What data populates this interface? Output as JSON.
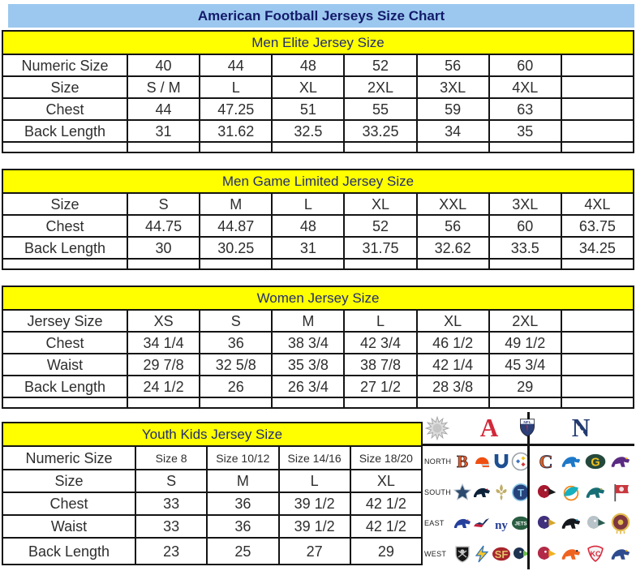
{
  "page_title": "American Football Jerseys Size Chart",
  "colors": {
    "title_bar_bg": "#9cc8ef",
    "title_text": "#131b6a",
    "section_header_bg": "#ffff00",
    "section_header_text": "#222d72",
    "table_border": "#141414",
    "afc_red": "#d2293a",
    "nfc_navy": "#223a70"
  },
  "sections": [
    {
      "id": "men-elite",
      "header": "Men Elite Jersey Size",
      "trailing_empty_column": true,
      "bottom_strip": true,
      "rows": [
        {
          "label": "Numeric Size",
          "values": [
            "40",
            "44",
            "48",
            "52",
            "56",
            "60"
          ]
        },
        {
          "label": "Size",
          "values": [
            "S / M",
            "L",
            "XL",
            "2XL",
            "3XL",
            "4XL"
          ]
        },
        {
          "label": "Chest",
          "values": [
            "44",
            "47.25",
            "51",
            "55",
            "59",
            "63"
          ]
        },
        {
          "label": "Back Length",
          "values": [
            "31",
            "31.62",
            "32.5",
            "33.25",
            "34",
            "35"
          ]
        }
      ]
    },
    {
      "id": "men-game-limited",
      "header": "Men Game Limited Jersey Size",
      "trailing_empty_column": false,
      "bottom_strip": true,
      "rows": [
        {
          "label": "Size",
          "values": [
            "S",
            "M",
            "L",
            "XL",
            "XXL",
            "3XL",
            "4XL"
          ]
        },
        {
          "label": "Chest",
          "values": [
            "44.75",
            "44.87",
            "48",
            "52",
            "56",
            "60",
            "63.75"
          ]
        },
        {
          "label": "Back Length",
          "values": [
            "30",
            "30.25",
            "31",
            "31.75",
            "32.62",
            "33.5",
            "34.25"
          ]
        }
      ]
    },
    {
      "id": "women",
      "header": "Women Jersey Size",
      "trailing_empty_column": true,
      "bottom_strip": true,
      "rows": [
        {
          "label": "Jersey Size",
          "values": [
            "XS",
            "S",
            "M",
            "L",
            "XL",
            "2XL"
          ]
        },
        {
          "label": "Chest",
          "values": [
            "34 1/4",
            "36",
            "38 3/4",
            "42 3/4",
            "46 1/2",
            "49 1/2"
          ]
        },
        {
          "label": "Waist",
          "values": [
            "29 7/8",
            "32 5/8",
            "35 3/8",
            "38 7/8",
            "42 1/4",
            "45 3/4"
          ]
        },
        {
          "label": "Back Length",
          "values": [
            "24 1/2",
            "26",
            "26 3/4",
            "27 1/2",
            "28 3/8",
            "29"
          ]
        }
      ]
    },
    {
      "id": "youth",
      "header": "Youth Kids Jersey Size",
      "trailing_empty_column": false,
      "bottom_strip": false,
      "rows": [
        {
          "label": "Numeric Size",
          "values": [
            "Size 8",
            "Size 10/12",
            "Size 14/16",
            "Size 18/20"
          ],
          "small": true
        },
        {
          "label": "Size",
          "values": [
            "S",
            "M",
            "L",
            "XL"
          ]
        },
        {
          "label": "Chest",
          "values": [
            "33",
            "36",
            "39 1/2",
            "42 1/2"
          ]
        },
        {
          "label": "Waist",
          "values": [
            "33",
            "36",
            "39 1/2",
            "42 1/2"
          ]
        },
        {
          "label": "Back Length",
          "values": [
            "23",
            "25",
            "27",
            "29"
          ]
        }
      ]
    }
  ],
  "logo_panel": {
    "afc_letter": "A",
    "nfc_letter": "N",
    "nfl_label": "NFL",
    "divisions": [
      {
        "name": "NORTH",
        "afc": [
          "Bengals",
          "Browns",
          "Colts",
          "Steelers"
        ],
        "nfc": [
          "Bears",
          "Lions",
          "Packers",
          "Vikings"
        ]
      },
      {
        "name": "SOUTH",
        "afc": [
          "Cowboys",
          "Texans",
          "Saints",
          "Titans"
        ],
        "nfc": [
          "Falcons",
          "Dolphins",
          "Jaguars",
          "Buccaneers"
        ]
      },
      {
        "name": "EAST",
        "afc": [
          "Bills",
          "Patriots",
          "Giants",
          "Jets"
        ],
        "nfc": [
          "Ravens",
          "Panthers",
          "Eagles",
          "Redskins"
        ]
      },
      {
        "name": "WEST",
        "afc": [
          "Raiders",
          "Chargers",
          "49ers",
          "Seahawks"
        ],
        "nfc": [
          "Cardinals",
          "Broncos",
          "Chiefs",
          "Rams"
        ]
      }
    ],
    "logo_styles": {
      "Bengals": {
        "kind": "letter",
        "t": "B",
        "c1": "#f05a28",
        "c2": "#1a1a1a"
      },
      "Browns": {
        "kind": "helmet",
        "c1": "#f04e10",
        "c2": "#cfd4d8"
      },
      "Colts": {
        "kind": "horseshoe",
        "c1": "#1d4f91",
        "c2": "#1d4f91"
      },
      "Steelers": {
        "kind": "steelers",
        "c1": "#ffffff",
        "c2": "#9aa1a8"
      },
      "Bears": {
        "kind": "letter",
        "t": "C",
        "c1": "#e8601c",
        "c2": "#14254c"
      },
      "Lions": {
        "kind": "animal",
        "c1": "#1e78c8",
        "c2": "#ffffff"
      },
      "Packers": {
        "kind": "oval",
        "t": "G",
        "c1": "#24493c",
        "c2": "#f2c11e"
      },
      "Vikings": {
        "kind": "animal",
        "c1": "#5b2b82",
        "c2": "#efb21f"
      },
      "Cowboys": {
        "kind": "star",
        "c1": "#2c4a6e",
        "c2": "#b9c4ce"
      },
      "Texans": {
        "kind": "animal",
        "c1": "#0b2239",
        "c2": "#c8102e"
      },
      "Saints": {
        "kind": "fleur",
        "c1": "#c1ad67",
        "c2": "#8a7a40"
      },
      "Titans": {
        "kind": "circleT",
        "t": "T",
        "c1": "#27437c",
        "c2": "#8ac6e8"
      },
      "Falcons": {
        "kind": "bird",
        "c1": "#a6192e",
        "c2": "#1a1a1a"
      },
      "Dolphins": {
        "kind": "arc",
        "c1": "#16b0bf",
        "c2": "#f08a1e"
      },
      "Jaguars": {
        "kind": "animal",
        "c1": "#176e74",
        "c2": "#d0a12f"
      },
      "Buccaneers": {
        "kind": "flag",
        "c1": "#c8373e",
        "c2": "#5f1210"
      },
      "Bills": {
        "kind": "animal",
        "c1": "#24409c",
        "c2": "#e0393e"
      },
      "Patriots": {
        "kind": "streak",
        "c1": "#c41e3a",
        "c2": "#1c2f5e"
      },
      "Giants": {
        "kind": "letter",
        "t": "ny",
        "c1": "#233b91",
        "c2": "none"
      },
      "Jets": {
        "kind": "oval",
        "t": "JETS",
        "c1": "#2a5e42",
        "c2": "#ffffff"
      },
      "Ravens": {
        "kind": "bird",
        "c1": "#41307c",
        "c2": "#d5a72b"
      },
      "Panthers": {
        "kind": "animal",
        "c1": "#15181c",
        "c2": "#3095c8"
      },
      "Eagles": {
        "kind": "bird",
        "c1": "#b8c3c9",
        "c2": "#2a5c52"
      },
      "Redskins": {
        "kind": "ring",
        "c1": "#7d3640",
        "c2": "#e3bc4e"
      },
      "Raiders": {
        "kind": "shield",
        "c1": "#161616",
        "c2": "#c6c6c6"
      },
      "Chargers": {
        "kind": "bolt",
        "c1": "#f5c52c",
        "c2": "#2a72b8"
      },
      "49ers": {
        "kind": "oval",
        "t": "SF",
        "c1": "#a8252c",
        "c2": "#e4c26a"
      },
      "Seahawks": {
        "kind": "bird",
        "c1": "#1d3350",
        "c2": "#6dbe4b"
      },
      "Cardinals": {
        "kind": "bird",
        "c1": "#b22a47",
        "c2": "#efb21f"
      },
      "Broncos": {
        "kind": "animal",
        "c1": "#ef6320",
        "c2": "#112233"
      },
      "Chiefs": {
        "kind": "arrowhead",
        "t": "KC",
        "c1": "#d8283c",
        "c2": "#ffffff"
      },
      "Rams": {
        "kind": "animal",
        "c1": "#2d4b8e",
        "c2": "#d9a41f"
      }
    }
  }
}
